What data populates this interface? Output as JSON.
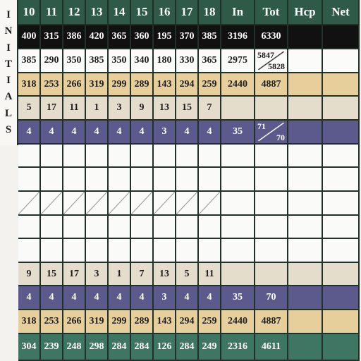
{
  "initials_label": [
    "I",
    "N",
    "I",
    "T",
    "I",
    "A",
    "L",
    "S"
  ],
  "columns": [
    "10",
    "11",
    "12",
    "13",
    "14",
    "15",
    "16",
    "17",
    "18",
    "In",
    "Tot",
    "Hcp",
    "Net"
  ],
  "rows": [
    {
      "style": "black",
      "cells": [
        "400",
        "315",
        "386",
        "420",
        "365",
        "360",
        "195",
        "370",
        "385",
        "3196",
        "6330",
        "",
        ""
      ]
    },
    {
      "style": "white",
      "cells": [
        "385",
        "290",
        "350",
        "385",
        "350",
        "340",
        "180",
        "330",
        "365",
        "2975",
        "",
        "",
        ""
      ],
      "tot_split": [
        "5847",
        "5828"
      ]
    },
    {
      "style": "gold",
      "cells": [
        "318",
        "253",
        "266",
        "319",
        "299",
        "289",
        "143",
        "294",
        "259",
        "2440",
        "4887",
        "",
        ""
      ]
    },
    {
      "style": "tan",
      "cells": [
        "5",
        "17",
        "11",
        "1",
        "3",
        "9",
        "13",
        "15",
        "7",
        "",
        "",
        "",
        ""
      ]
    },
    {
      "style": "purple",
      "cells": [
        "4",
        "4",
        "4",
        "4",
        "4",
        "4",
        "3",
        "4",
        "4",
        "35",
        "",
        "",
        ""
      ],
      "tot_split": [
        "71",
        "70"
      ]
    },
    {
      "style": "blank",
      "cells": [
        "",
        "",
        "",
        "",
        "",
        "",
        "",
        "",
        "",
        "",
        "",
        "",
        ""
      ]
    },
    {
      "style": "blank",
      "cells": [
        "",
        "",
        "",
        "",
        "",
        "",
        "",
        "",
        "",
        "",
        "",
        "",
        ""
      ]
    },
    {
      "style": "blank",
      "cells": [
        "",
        "",
        "",
        "",
        "",
        "",
        "",
        "",
        "",
        "",
        "",
        "",
        ""
      ],
      "diagonals": true
    },
    {
      "style": "blank",
      "cells": [
        "",
        "",
        "",
        "",
        "",
        "",
        "",
        "",
        "",
        "",
        "",
        "",
        ""
      ]
    },
    {
      "style": "blank",
      "cells": [
        "",
        "",
        "",
        "",
        "",
        "",
        "",
        "",
        "",
        "",
        "",
        "",
        ""
      ]
    },
    {
      "style": "tan",
      "cells": [
        "9",
        "15",
        "17",
        "3",
        "1",
        "7",
        "13",
        "5",
        "11",
        "",
        "",
        "",
        ""
      ]
    },
    {
      "style": "purple",
      "cells": [
        "4",
        "4",
        "4",
        "4",
        "4",
        "4",
        "3",
        "4",
        "4",
        "35",
        "70",
        "",
        ""
      ]
    },
    {
      "style": "gold",
      "cells": [
        "318",
        "253",
        "266",
        "319",
        "299",
        "289",
        "143",
        "294",
        "259",
        "2440",
        "4887",
        "",
        ""
      ]
    },
    {
      "style": "green",
      "cells": [
        "304",
        "239",
        "248",
        "298",
        "284",
        "284",
        "126",
        "284",
        "249",
        "2316",
        "4611",
        "",
        ""
      ]
    }
  ]
}
